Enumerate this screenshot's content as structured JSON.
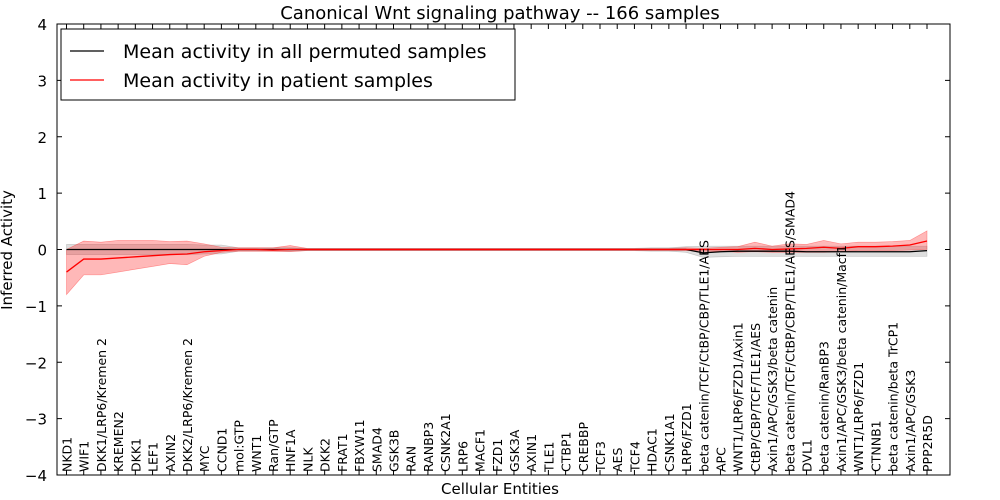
{
  "chart_data": {
    "type": "line",
    "title": "Canonical Wnt signaling pathway -- 166 samples",
    "xlabel": "Cellular Entities",
    "ylabel": "Inferred Activity",
    "ylim": [
      -4,
      4
    ],
    "yticks": [
      -4,
      -3,
      -2,
      -1,
      0,
      1,
      2,
      3,
      4
    ],
    "ytick_labels": [
      "−4",
      "−3",
      "−2",
      "−1",
      "0",
      "1",
      "2",
      "3",
      "4"
    ],
    "legend_position": "top-left",
    "categories": [
      "NKD1",
      "WIF1",
      "DKK1/LRP6/Kremen 2",
      "KREMEN2",
      "DKK1",
      "LEF1",
      "AXIN2",
      "DKK2/LRP6/Kremen 2",
      "MYC",
      "CCND1",
      "mol:GTP",
      "WNT1",
      "Ran/GTP",
      "HNF1A",
      "NLK",
      "DKK2",
      "FRAT1",
      "FBXW11",
      "SMAD4",
      "GSK3B",
      "RAN",
      "RANBP3",
      "CSNK2A1",
      "LRP6",
      "MACF1",
      "FZD1",
      "GSK3A",
      "AXIN1",
      "TLE1",
      "CTBP1",
      "CREBBP",
      "TCF3",
      "AES",
      "TCF4",
      "HDAC1",
      "CSNK1A1",
      "LRP6/FZD1",
      "beta catenin/TCF/CtBP/CBP/TLE1/AES",
      "APC",
      "WNT1/LRP6/FZD1/Axin1",
      "CtBP/CBP/TCF/TLE1/AES",
      "Axin1/APC/GSK3/beta catenin",
      "beta catenin/TCF/CtBP/CBP/TLE1/AES/SMAD4",
      "DVL1",
      "beta catenin/RanBP3",
      "Axin1/APC/GSK3/beta catenin/Macf1",
      "WNT1/LRP6/FZD1",
      "CTNNB1",
      "beta catenin/beta TrCP1",
      "Axin1/APC/GSK3",
      "PPP2R5D"
    ],
    "series": [
      {
        "name": "Mean activity in all permuted samples",
        "color": "#000000",
        "values": [
          0.0,
          0.0,
          0.0,
          0.0,
          0.0,
          0.0,
          0.0,
          0.0,
          0.0,
          0.0,
          0.0,
          0.0,
          0.0,
          0.0,
          0.0,
          0.0,
          0.0,
          0.0,
          0.0,
          0.0,
          0.0,
          0.0,
          0.0,
          0.0,
          0.0,
          0.0,
          0.0,
          0.0,
          0.0,
          0.0,
          0.0,
          0.0,
          0.0,
          0.0,
          0.0,
          0.0,
          0.0,
          -0.06,
          -0.04,
          -0.03,
          -0.03,
          -0.03,
          -0.03,
          -0.04,
          -0.04,
          -0.04,
          -0.04,
          -0.04,
          -0.04,
          -0.04,
          -0.02
        ],
        "lower": [
          -0.09,
          -0.09,
          -0.09,
          -0.09,
          -0.09,
          -0.09,
          -0.09,
          -0.09,
          -0.08,
          -0.08,
          -0.03,
          -0.03,
          -0.03,
          -0.03,
          -0.02,
          -0.02,
          -0.02,
          -0.02,
          -0.02,
          -0.02,
          -0.02,
          -0.02,
          -0.02,
          -0.02,
          -0.02,
          -0.02,
          -0.02,
          -0.02,
          -0.02,
          -0.02,
          -0.02,
          -0.02,
          -0.02,
          -0.02,
          -0.03,
          -0.03,
          -0.05,
          -0.14,
          -0.13,
          -0.12,
          -0.12,
          -0.12,
          -0.12,
          -0.12,
          -0.12,
          -0.12,
          -0.12,
          -0.12,
          -0.12,
          -0.12,
          -0.12
        ],
        "upper": [
          0.09,
          0.09,
          0.09,
          0.09,
          0.09,
          0.09,
          0.09,
          0.09,
          0.08,
          0.08,
          0.03,
          0.03,
          0.03,
          0.03,
          0.02,
          0.02,
          0.02,
          0.02,
          0.02,
          0.02,
          0.02,
          0.02,
          0.02,
          0.02,
          0.02,
          0.02,
          0.02,
          0.02,
          0.02,
          0.02,
          0.02,
          0.02,
          0.02,
          0.02,
          0.03,
          0.03,
          0.05,
          0.06,
          0.06,
          0.06,
          0.06,
          0.06,
          0.06,
          0.06,
          0.06,
          0.06,
          0.06,
          0.06,
          0.06,
          0.06,
          0.06
        ]
      },
      {
        "name": "Mean activity in patient samples",
        "color": "#ff0000",
        "values": [
          -0.4,
          -0.17,
          -0.17,
          -0.15,
          -0.13,
          -0.11,
          -0.09,
          -0.08,
          -0.04,
          -0.02,
          0.0,
          0.0,
          -0.01,
          0.0,
          0.0,
          0.0,
          0.0,
          0.0,
          0.0,
          0.0,
          0.0,
          0.0,
          0.0,
          0.0,
          0.0,
          0.0,
          0.0,
          0.0,
          0.0,
          0.0,
          0.0,
          0.0,
          0.0,
          0.0,
          0.0,
          0.0,
          0.0,
          0.0,
          0.0,
          0.0,
          0.02,
          0.0,
          0.01,
          0.02,
          0.04,
          0.02,
          0.05,
          0.05,
          0.06,
          0.08,
          0.15
        ],
        "lower": [
          -0.8,
          -0.45,
          -0.45,
          -0.4,
          -0.35,
          -0.3,
          -0.25,
          -0.27,
          -0.12,
          -0.05,
          -0.03,
          -0.03,
          -0.03,
          -0.04,
          -0.02,
          -0.02,
          -0.02,
          -0.02,
          -0.02,
          -0.02,
          -0.02,
          -0.02,
          -0.02,
          -0.02,
          -0.02,
          -0.02,
          -0.02,
          -0.02,
          -0.02,
          -0.02,
          -0.02,
          -0.02,
          -0.02,
          -0.02,
          -0.02,
          -0.02,
          -0.02,
          -0.03,
          -0.03,
          -0.05,
          -0.04,
          -0.05,
          -0.05,
          -0.05,
          -0.05,
          -0.04,
          -0.02,
          -0.02,
          -0.02,
          -0.01,
          0.0
        ],
        "upper": [
          0.0,
          0.15,
          0.13,
          0.16,
          0.16,
          0.16,
          0.14,
          0.15,
          0.1,
          0.04,
          0.03,
          0.03,
          0.03,
          0.07,
          0.02,
          0.02,
          0.02,
          0.02,
          0.02,
          0.02,
          0.02,
          0.02,
          0.02,
          0.02,
          0.02,
          0.02,
          0.02,
          0.02,
          0.02,
          0.02,
          0.02,
          0.02,
          0.02,
          0.02,
          0.02,
          0.02,
          0.03,
          0.02,
          0.04,
          0.05,
          0.13,
          0.06,
          0.1,
          0.09,
          0.16,
          0.1,
          0.13,
          0.13,
          0.14,
          0.16,
          0.33
        ]
      }
    ]
  }
}
